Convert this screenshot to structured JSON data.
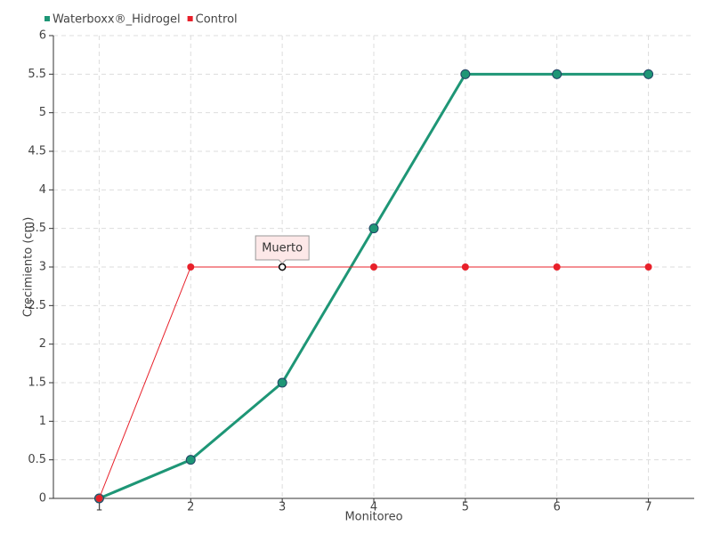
{
  "chart_data": {
    "type": "line",
    "x_label": "Monitoreo",
    "y_label": "Crecimiento (cm)",
    "x": [
      1,
      2,
      3,
      4,
      5,
      6,
      7
    ],
    "series": [
      {
        "name": "Waterboxx®_Hidrogel",
        "color": "#1e9676",
        "values": [
          0,
          0.5,
          1.5,
          3.5,
          5.5,
          5.5,
          5.5
        ]
      },
      {
        "name": "Control",
        "color": "#e8202a",
        "values": [
          0,
          3,
          3,
          3,
          3,
          3,
          3
        ]
      }
    ],
    "annotations": [
      {
        "text": "Muerto",
        "x": 3,
        "y": 3
      }
    ],
    "xlim": [
      0.5,
      7.5
    ],
    "xticks": [
      1,
      2,
      3,
      4,
      5,
      6,
      7
    ],
    "ylim": [
      0,
      6
    ],
    "yticks": [
      0,
      0.5,
      1,
      1.5,
      2,
      2.5,
      3,
      3.5,
      4,
      4.5,
      5,
      5.5,
      6
    ],
    "grid": true,
    "legend": "top-left"
  }
}
